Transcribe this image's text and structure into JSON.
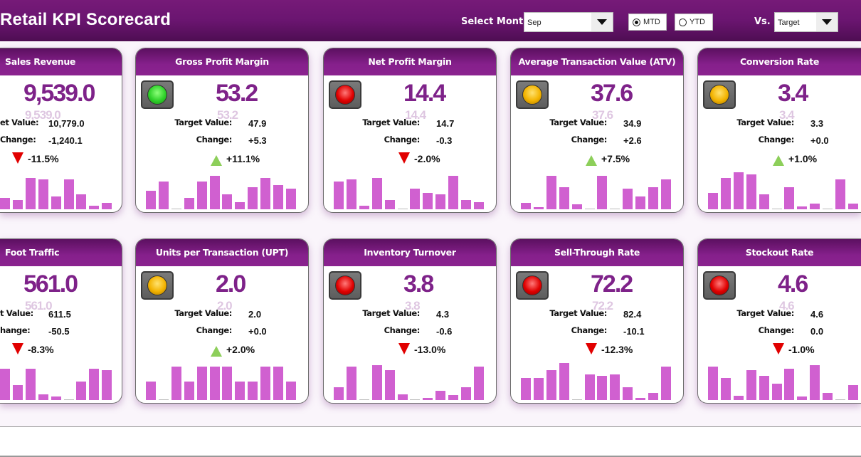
{
  "header": {
    "title": "Retail KPI Scorecard",
    "select_month_label": "Select Month",
    "month_value": "Sep",
    "period_options": [
      {
        "label": "MTD",
        "selected": true
      },
      {
        "label": "YTD",
        "selected": false
      }
    ],
    "vs_label": "Vs.",
    "vs_value": "Target"
  },
  "labels": {
    "target": "Target Value:",
    "change": "Change:"
  },
  "colors": {
    "header_purple": "#6a1570",
    "value_purple": "#7e2289",
    "bar_color": "#d060d0",
    "up_arrow": "#8dcf5a",
    "down_arrow": "#e10000"
  },
  "cards": [
    {
      "title": "Sales Revenue",
      "value": "9,539.0",
      "target": "10,779.0",
      "change": "-1,240.1",
      "pct": "-11.5%",
      "direction": "down",
      "status": "red",
      "light_visible": false,
      "label_target": "et Value:",
      "label_change": "Change:",
      "bars": [
        3,
        2.5,
        8.5,
        8,
        3.5,
        8,
        4,
        1,
        1.8
      ]
    },
    {
      "title": "Gross Profit Margin",
      "value": "53.2",
      "target": "47.9",
      "change": "+5.3",
      "pct": "+11.1%",
      "direction": "up",
      "status": "green",
      "light_visible": true,
      "bars": [
        5,
        7.5,
        0,
        3,
        7.5,
        9,
        4,
        2,
        6,
        8.5,
        6.5,
        5.5
      ]
    },
    {
      "title": "Net Profit Margin",
      "value": "14.4",
      "target": "14.7",
      "change": "-0.3",
      "pct": "-2.0%",
      "direction": "down",
      "status": "red",
      "light_visible": true,
      "bars": [
        7.5,
        8,
        1,
        8.5,
        2.5,
        0,
        5.5,
        4.5,
        4,
        9,
        2.5,
        2
      ]
    },
    {
      "title": "Average Transaction Value (ATV)",
      "value": "37.6",
      "target": "34.9",
      "change": "+2.6",
      "pct": "+7.5%",
      "direction": "up",
      "status": "yellow",
      "light_visible": true,
      "bars": [
        1.8,
        0.6,
        9,
        6,
        1.3,
        0,
        9,
        0,
        5.5,
        3.5,
        6,
        8
      ]
    },
    {
      "title": "Conversion Rate",
      "value": "3.4",
      "target": "3.3",
      "change": "+0.0",
      "pct": "+1.0%",
      "direction": "up",
      "status": "yellow",
      "light_visible": true,
      "bars": [
        4.5,
        8.5,
        10,
        9.5,
        4,
        0,
        6,
        0.8,
        1.5,
        0,
        8,
        1.5
      ]
    },
    {
      "title": "Foot Traffic",
      "value": "561.0",
      "target": "611.5",
      "change": "-50.5",
      "pct": "-8.3%",
      "direction": "down",
      "status": "red",
      "light_visible": false,
      "label_target": "t Value:",
      "label_change": "hange:",
      "bars": [
        8.5,
        4,
        8.5,
        1.5,
        1,
        0,
        5,
        8.5,
        8
      ]
    },
    {
      "title": "Units per Transaction (UPT)",
      "value": "2.0",
      "target": "2.0",
      "change": "+0.0",
      "pct": "+2.0%",
      "direction": "up",
      "status": "yellow",
      "light_visible": true,
      "bars": [
        5,
        0,
        9,
        5,
        9,
        9,
        9,
        5,
        5,
        9,
        9,
        5
      ]
    },
    {
      "title": "Inventory Turnover",
      "value": "3.8",
      "target": "4.3",
      "change": "-0.6",
      "pct": "-13.0%",
      "direction": "down",
      "status": "red",
      "light_visible": true,
      "bars": [
        3.5,
        9,
        0,
        9.5,
        8,
        1.5,
        0,
        0.5,
        2.5,
        1.3,
        3.5,
        9
      ]
    },
    {
      "title": "Sell-Through Rate",
      "value": "72.2",
      "target": "82.4",
      "change": "-10.1",
      "pct": "-12.3%",
      "direction": "down",
      "status": "red",
      "light_visible": true,
      "bars": [
        6,
        6,
        8,
        10,
        0,
        7,
        6.5,
        7,
        3.5,
        0.5,
        2,
        9
      ]
    },
    {
      "title": "Stockout Rate",
      "value": "4.6",
      "target": "4.6",
      "change": "0.0",
      "pct": "-1.0%",
      "direction": "down",
      "status": "red",
      "light_visible": true,
      "bars": [
        9,
        6,
        1.2,
        8,
        6.5,
        4.5,
        8.5,
        1,
        9.5,
        2,
        0,
        4
      ]
    }
  ]
}
